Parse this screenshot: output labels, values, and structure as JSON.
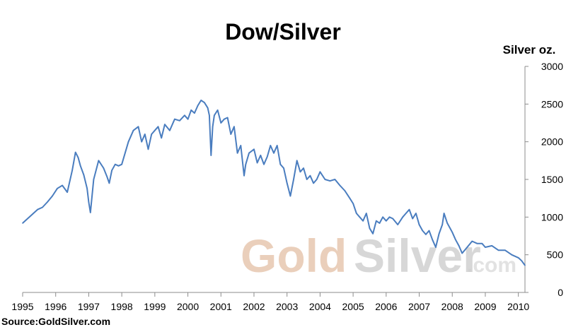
{
  "chart_data": {
    "type": "line",
    "title": "Dow/Silver",
    "xlabel": "",
    "ylabel": "Silver oz.",
    "y_axis_side": "right",
    "ylim": [
      0,
      3000
    ],
    "xlim": [
      1995,
      2010.2
    ],
    "y_ticks": [
      "3000",
      "2500",
      "2000",
      "1500",
      "1000",
      "500",
      "0"
    ],
    "x_ticks": [
      "1995",
      "1996",
      "1997",
      "1998",
      "1999",
      "2000",
      "2001",
      "2002",
      "2003",
      "2004",
      "2005",
      "2006",
      "2007",
      "2008",
      "2009",
      "2010"
    ],
    "grid": false,
    "line_color": "#4a7dbf",
    "series": [
      {
        "x": [
          1995.0,
          1995.15,
          1995.3,
          1995.45,
          1995.6,
          1995.75,
          1995.9,
          1996.05,
          1996.2,
          1996.35,
          1996.5,
          1996.6,
          1996.68,
          1996.75,
          1996.85,
          1996.95,
          1997.0,
          1997.05,
          1997.15,
          1997.3,
          1997.45,
          1997.55,
          1997.62,
          1997.7,
          1997.8,
          1997.9,
          1998.0,
          1998.1,
          1998.2,
          1998.35,
          1998.5,
          1998.6,
          1998.7,
          1998.8,
          1998.9,
          1999.0,
          1999.1,
          1999.2,
          1999.3,
          1999.45,
          1999.6,
          1999.75,
          1999.9,
          2000.0,
          2000.1,
          2000.2,
          2000.3,
          2000.4,
          2000.5,
          2000.6,
          2000.65,
          2000.7,
          2000.75,
          2000.8,
          2000.9,
          2001.0,
          2001.1,
          2001.2,
          2001.3,
          2001.4,
          2001.5,
          2001.6,
          2001.7,
          2001.75,
          2001.85,
          2002.0,
          2002.1,
          2002.2,
          2002.3,
          2002.4,
          2002.5,
          2002.6,
          2002.7,
          2002.8,
          2002.9,
          2003.0,
          2003.1,
          2003.2,
          2003.3,
          2003.4,
          2003.5,
          2003.6,
          2003.7,
          2003.8,
          2003.9,
          2004.0,
          2004.15,
          2004.3,
          2004.45,
          2004.6,
          2004.75,
          2004.9,
          2005.0,
          2005.1,
          2005.2,
          2005.3,
          2005.4,
          2005.5,
          2005.6,
          2005.7,
          2005.8,
          2005.9,
          2006.0,
          2006.1,
          2006.2,
          2006.35,
          2006.5,
          2006.6,
          2006.7,
          2006.8,
          2006.9,
          2007.0,
          2007.1,
          2007.2,
          2007.3,
          2007.4,
          2007.5,
          2007.6,
          2007.7,
          2007.75,
          2007.85,
          2008.0,
          2008.1,
          2008.2,
          2008.3,
          2008.45,
          2008.6,
          2008.75,
          2008.9,
          2009.0,
          2009.2,
          2009.4,
          2009.6,
          2009.8,
          2010.0,
          2010.1,
          2010.2
        ],
        "values": [
          920,
          980,
          1040,
          1100,
          1130,
          1200,
          1280,
          1380,
          1420,
          1330,
          1620,
          1860,
          1790,
          1680,
          1560,
          1380,
          1200,
          1060,
          1500,
          1750,
          1650,
          1540,
          1450,
          1620,
          1700,
          1680,
          1700,
          1850,
          2000,
          2150,
          2200,
          2000,
          2100,
          1900,
          2100,
          2150,
          2200,
          2050,
          2230,
          2150,
          2300,
          2280,
          2350,
          2300,
          2420,
          2380,
          2480,
          2550,
          2520,
          2450,
          2350,
          1820,
          2200,
          2350,
          2420,
          2250,
          2300,
          2320,
          2100,
          2200,
          1850,
          1950,
          1550,
          1700,
          1850,
          1900,
          1720,
          1820,
          1700,
          1800,
          1950,
          1850,
          1950,
          1700,
          1650,
          1450,
          1280,
          1500,
          1750,
          1600,
          1650,
          1500,
          1550,
          1450,
          1500,
          1600,
          1500,
          1480,
          1500,
          1420,
          1350,
          1250,
          1180,
          1050,
          1000,
          950,
          1050,
          850,
          780,
          950,
          920,
          1000,
          950,
          1000,
          980,
          900,
          1000,
          1050,
          1100,
          980,
          1050,
          900,
          820,
          770,
          820,
          700,
          600,
          780,
          900,
          1050,
          920,
          800,
          700,
          620,
          520,
          600,
          680,
          650,
          650,
          600,
          620,
          560,
          560,
          500,
          460,
          420,
          360
        ]
      }
    ]
  },
  "watermark": {
    "part1": "Gold",
    "part2": "Silver",
    "part3": ".com"
  },
  "source": "Source:GoldSilver.com"
}
